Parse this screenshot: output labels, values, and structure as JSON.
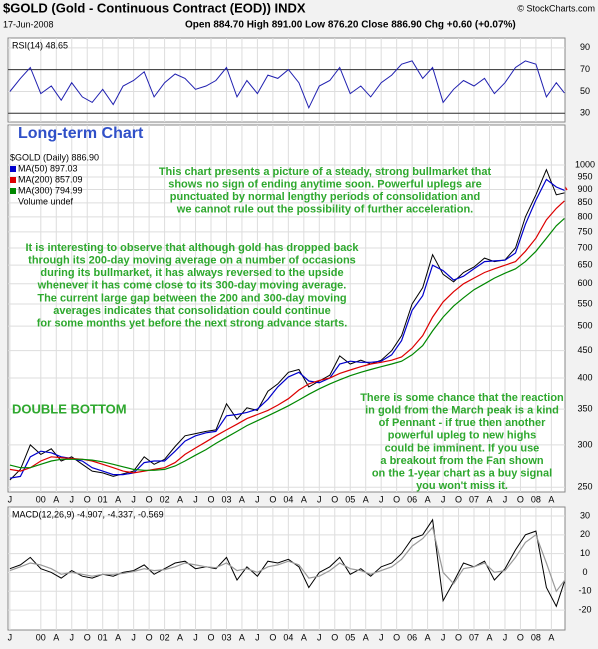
{
  "header": {
    "symbol_title": "$GOLD (Gold - Continuous Contract (EOD)) INDX",
    "source": "© StockCharts.com",
    "date": "17-Jun-2008",
    "quote": "Open 884.70  High 891.00  Low 876.20  Close 886.90  Chg +0.60 (+0.07%)"
  },
  "chart_data": [
    {
      "type": "line",
      "label": "RSI(14) 48.65",
      "color": "#2020b0",
      "ylim": [
        22,
        99
      ],
      "yticks": [
        30,
        50,
        70,
        90
      ],
      "reference_lines": [
        30,
        70
      ],
      "values": [
        50,
        62,
        72,
        48,
        55,
        42,
        58,
        45,
        40,
        52,
        38,
        55,
        60,
        68,
        45,
        58,
        66,
        62,
        52,
        55,
        60,
        72,
        45,
        60,
        48,
        65,
        62,
        70,
        58,
        35,
        55,
        60,
        72,
        48,
        55,
        45,
        58,
        65,
        75,
        78,
        62,
        72,
        40,
        52,
        60,
        55,
        62,
        48,
        58,
        72,
        78,
        75,
        45,
        58,
        48.65
      ]
    },
    {
      "type": "line",
      "log_scale": true,
      "subtitle": "Long-term Chart",
      "legend_extra": "Volume undef",
      "grid": true,
      "x": [
        1999.5,
        1999.67,
        1999.83,
        2000,
        2000.17,
        2000.33,
        2000.5,
        2000.67,
        2000.83,
        2001,
        2001.17,
        2001.33,
        2001.5,
        2001.67,
        2001.83,
        2002,
        2002.17,
        2002.33,
        2002.5,
        2002.67,
        2002.83,
        2003,
        2003.17,
        2003.33,
        2003.5,
        2003.67,
        2003.83,
        2004,
        2004.17,
        2004.33,
        2004.5,
        2004.67,
        2004.83,
        2005,
        2005.17,
        2005.33,
        2005.5,
        2005.67,
        2005.83,
        2006,
        2006.17,
        2006.33,
        2006.5,
        2006.67,
        2006.83,
        2007,
        2007.17,
        2007.33,
        2007.5,
        2007.67,
        2007.83,
        2008,
        2008.17,
        2008.33,
        2008.46
      ],
      "xlim": [
        1999.47,
        2008.47
      ],
      "xticks": [
        {
          "value": 1999.5,
          "label": "J"
        },
        {
          "value": 2000,
          "label": "00"
        },
        {
          "value": 2000.25,
          "label": "A"
        },
        {
          "value": 2000.5,
          "label": "J"
        },
        {
          "value": 2000.75,
          "label": "O"
        },
        {
          "value": 2001,
          "label": "01"
        },
        {
          "value": 2001.25,
          "label": "A"
        },
        {
          "value": 2001.5,
          "label": "J"
        },
        {
          "value": 2001.75,
          "label": "O"
        },
        {
          "value": 2002,
          "label": "02"
        },
        {
          "value": 2002.25,
          "label": "A"
        },
        {
          "value": 2002.5,
          "label": "J"
        },
        {
          "value": 2002.75,
          "label": "O"
        },
        {
          "value": 2003,
          "label": "03"
        },
        {
          "value": 2003.25,
          "label": "A"
        },
        {
          "value": 2003.5,
          "label": "J"
        },
        {
          "value": 2003.75,
          "label": "O"
        },
        {
          "value": 2004,
          "label": "04"
        },
        {
          "value": 2004.25,
          "label": "A"
        },
        {
          "value": 2004.5,
          "label": "J"
        },
        {
          "value": 2004.75,
          "label": "O"
        },
        {
          "value": 2005,
          "label": "05"
        },
        {
          "value": 2005.25,
          "label": "A"
        },
        {
          "value": 2005.5,
          "label": "J"
        },
        {
          "value": 2005.75,
          "label": "O"
        },
        {
          "value": 2006,
          "label": "06"
        },
        {
          "value": 2006.25,
          "label": "A"
        },
        {
          "value": 2006.5,
          "label": "J"
        },
        {
          "value": 2006.75,
          "label": "O"
        },
        {
          "value": 2007,
          "label": "07"
        },
        {
          "value": 2007.25,
          "label": "A"
        },
        {
          "value": 2007.5,
          "label": "J"
        },
        {
          "value": 2007.75,
          "label": "O"
        },
        {
          "value": 2008,
          "label": "08"
        },
        {
          "value": 2008.25,
          "label": "A"
        }
      ],
      "ylim": [
        245,
        1188
      ],
      "yticks": [
        250,
        300,
        350,
        400,
        450,
        500,
        550,
        600,
        650,
        700,
        750,
        800,
        850,
        900,
        950,
        1000
      ],
      "series": [
        {
          "name": "$GOLD (Daily) 886.90",
          "color": "#000000",
          "values": [
            258,
            270,
            300,
            288,
            295,
            280,
            285,
            276,
            268,
            266,
            262,
            265,
            268,
            285,
            276,
            282,
            298,
            312,
            315,
            318,
            320,
            358,
            335,
            352,
            348,
            378,
            390,
            410,
            415,
            385,
            395,
            405,
            440,
            425,
            432,
            425,
            432,
            450,
            480,
            550,
            590,
            680,
            625,
            605,
            630,
            645,
            670,
            660,
            665,
            700,
            800,
            880,
            980,
            880,
            887
          ]
        },
        {
          "name": "MA(50) 897.03",
          "color": "#0000cc",
          "values": [
            260,
            262,
            285,
            292,
            290,
            285,
            283,
            280,
            272,
            268,
            264,
            264,
            266,
            278,
            280,
            280,
            292,
            305,
            312,
            316,
            318,
            340,
            342,
            345,
            350,
            365,
            385,
            402,
            410,
            395,
            392,
            400,
            425,
            430,
            428,
            428,
            430,
            442,
            470,
            535,
            570,
            650,
            635,
            610,
            620,
            640,
            660,
            662,
            664,
            685,
            775,
            860,
            940,
            910,
            897
          ]
        },
        {
          "name": "MA(200) 857.09",
          "color": "#dd0000",
          "values": [
            270,
            268,
            272,
            280,
            285,
            284,
            283,
            282,
            280,
            276,
            272,
            268,
            266,
            268,
            270,
            272,
            278,
            288,
            296,
            304,
            312,
            320,
            328,
            336,
            342,
            348,
            356,
            366,
            380,
            390,
            396,
            400,
            408,
            414,
            420,
            425,
            428,
            432,
            438,
            455,
            480,
            520,
            555,
            580,
            600,
            615,
            630,
            640,
            650,
            660,
            690,
            730,
            790,
            830,
            857
          ]
        },
        {
          "name": "MA(300) 794.99",
          "color": "#008800",
          "values": [
            275,
            272,
            272,
            276,
            280,
            282,
            282,
            282,
            281,
            279,
            276,
            273,
            270,
            269,
            269,
            270,
            274,
            280,
            287,
            294,
            302,
            310,
            318,
            326,
            333,
            340,
            347,
            355,
            364,
            373,
            382,
            390,
            397,
            404,
            410,
            415,
            420,
            425,
            430,
            442,
            460,
            490,
            520,
            545,
            565,
            585,
            600,
            615,
            628,
            640,
            660,
            690,
            730,
            770,
            795
          ]
        }
      ],
      "annotations": [
        [
          "This chart presents a picture of a steady, strong bullmarket that",
          "shows no sign of ending anytime soon. Powerful uplegs are",
          "punctuated by normal lengthy periods of consolidation and",
          "we cannot rule out the possibility of further acceleration."
        ],
        [
          "It is interesting to observe that although gold has dropped back",
          "through its 200-day moving average on a number of occasions",
          "during its bullmarket, it has always reversed to the upside",
          "whenever it has come close to its 300-day moving average.",
          "The current large gap between the 200 and 300-day moving",
          "averages indicates that consolidation could continue",
          "for some months yet before the next strong advance starts."
        ],
        [
          "DOUBLE BOTTOM"
        ],
        [
          "There is some chance that the reaction",
          "in gold from the March peak is a kind",
          "of Pennant - if true then another",
          "powerful upleg to new highs",
          "could be imminent. If you use",
          "a breakout from the Fan shown",
          "on the 1-year chart as a buy signal",
          "you won't miss it."
        ]
      ]
    },
    {
      "type": "line",
      "label": "MACD(12,26,9) -4.907, -4.337, -0.569",
      "ylim": [
        -30.6,
        34.8
      ],
      "yticks": [
        -20,
        -10,
        0,
        10,
        20,
        30
      ],
      "series": [
        {
          "color": "#000000",
          "values": [
            2,
            4,
            8,
            2,
            0,
            -3,
            1,
            -2,
            -3,
            -1,
            -2,
            0,
            1,
            4,
            -1,
            2,
            5,
            6,
            2,
            3,
            2,
            8,
            -4,
            3,
            -2,
            6,
            5,
            7,
            3,
            -8,
            0,
            3,
            8,
            -1,
            2,
            -2,
            3,
            5,
            10,
            18,
            20,
            28,
            -15,
            -5,
            5,
            3,
            6,
            -4,
            2,
            12,
            20,
            22,
            -8,
            -18,
            -4.907
          ]
        },
        {
          "color": "#999999",
          "values": [
            1,
            3,
            5,
            4,
            2,
            -1,
            0,
            -1,
            -2,
            -1,
            -1,
            -0.5,
            0.5,
            2,
            1,
            1.5,
            3,
            5,
            4,
            3,
            2.5,
            5,
            1,
            2,
            0,
            3,
            4,
            6,
            4,
            -3,
            -2,
            1,
            5,
            2,
            1,
            -1,
            1,
            3,
            7,
            14,
            18,
            24,
            0,
            -6,
            2,
            3,
            5,
            0,
            1,
            8,
            16,
            20,
            5,
            -10,
            -4.337
          ]
        }
      ]
    }
  ]
}
